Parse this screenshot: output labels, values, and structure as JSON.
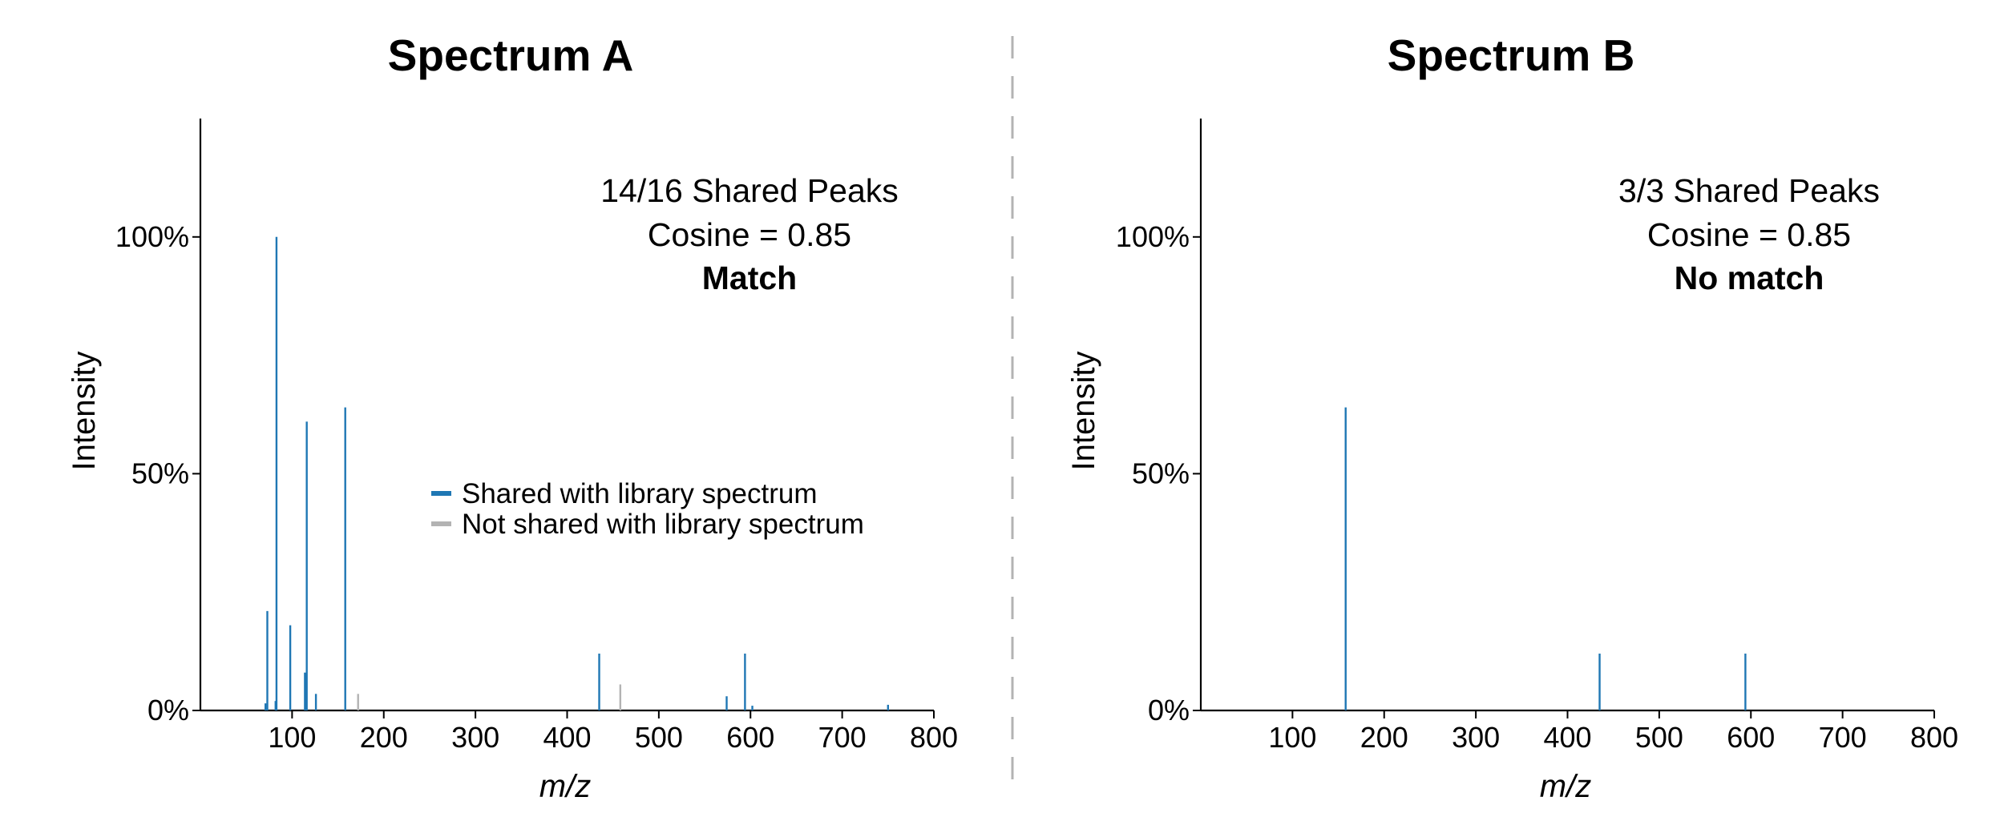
{
  "chart_data": [
    {
      "type": "bar",
      "title": "Spectrum A",
      "xlabel": "m/z",
      "ylabel": "Intensity",
      "xlim": [
        0,
        800
      ],
      "ylim": [
        0,
        1.25
      ],
      "xticks": [
        "100",
        "200",
        "300",
        "400",
        "500",
        "600",
        "700",
        "800"
      ],
      "yticks": [
        "0%",
        "50%",
        "100%"
      ],
      "grid": false,
      "legend": {
        "placement": "center",
        "entries": [
          {
            "label": "Shared with library spectrum",
            "color": "#1f77b4"
          },
          {
            "label": "Not shared with library spectrum",
            "color": "#b3b3b3"
          }
        ]
      },
      "annotation": {
        "line1": "14/16 Shared Peaks",
        "line2": "Cosine = 0.85",
        "line3": "Match"
      },
      "series": [
        {
          "color": "#1f77b4",
          "peaks": [
            {
              "mz": 71,
              "intensity": 0.015
            },
            {
              "mz": 73,
              "intensity": 0.21
            },
            {
              "mz": 82,
              "intensity": 0.02
            },
            {
              "mz": 83,
              "intensity": 1.0
            },
            {
              "mz": 98,
              "intensity": 0.18
            },
            {
              "mz": 114,
              "intensity": 0.08
            },
            {
              "mz": 116,
              "intensity": 0.61
            },
            {
              "mz": 126,
              "intensity": 0.035
            },
            {
              "mz": 158,
              "intensity": 0.64
            },
            {
              "mz": 435,
              "intensity": 0.12
            },
            {
              "mz": 574,
              "intensity": 0.03
            },
            {
              "mz": 594,
              "intensity": 0.12
            },
            {
              "mz": 602,
              "intensity": 0.01
            },
            {
              "mz": 750,
              "intensity": 0.012
            }
          ]
        },
        {
          "color": "#b3b3b3",
          "peaks": [
            {
              "mz": 172,
              "intensity": 0.035
            },
            {
              "mz": 458,
              "intensity": 0.055
            }
          ]
        }
      ]
    },
    {
      "type": "bar",
      "title": "Spectrum B",
      "xlabel": "m/z",
      "ylabel": "Intensity",
      "xlim": [
        0,
        800
      ],
      "ylim": [
        0,
        1.25
      ],
      "xticks": [
        "100",
        "200",
        "300",
        "400",
        "500",
        "600",
        "700",
        "800"
      ],
      "yticks": [
        "0%",
        "50%",
        "100%"
      ],
      "grid": false,
      "annotation": {
        "line1": "3/3 Shared Peaks",
        "line2": "Cosine = 0.85",
        "line3": "No match"
      },
      "series": [
        {
          "color": "#1f77b4",
          "peaks": [
            {
              "mz": 158,
              "intensity": 0.64
            },
            {
              "mz": 435,
              "intensity": 0.12
            },
            {
              "mz": 594,
              "intensity": 0.12
            }
          ]
        }
      ]
    }
  ]
}
